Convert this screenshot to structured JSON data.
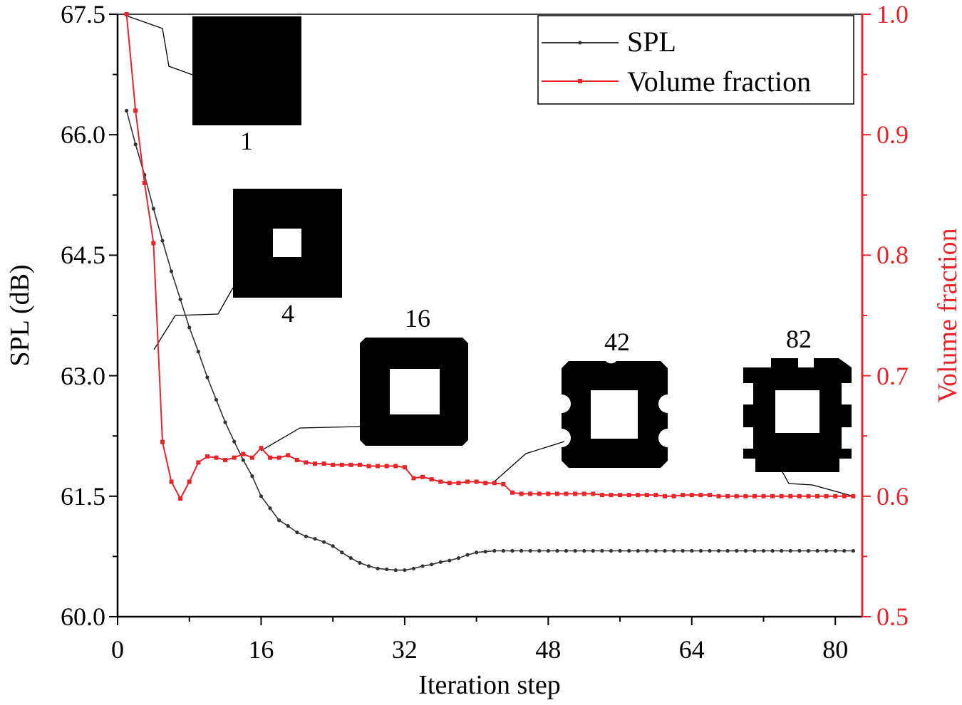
{
  "chart_data": {
    "type": "line",
    "title": "",
    "xlabel": "Iteration step",
    "ylabel": "SPL (dB)",
    "y2label": "Volume fraction",
    "xlim": [
      0,
      83
    ],
    "ylim": [
      60.0,
      67.5
    ],
    "y2lim": [
      0.5,
      1.0
    ],
    "x_ticks": [
      "0",
      "16",
      "32",
      "48",
      "64",
      "80"
    ],
    "y_ticks": [
      "60.0",
      "61.5",
      "63.0",
      "64.5",
      "66.0",
      "67.5"
    ],
    "y2_ticks": [
      "0.5",
      "0.6",
      "0.7",
      "0.8",
      "0.9",
      "1.0"
    ],
    "grid": false,
    "legend_position": "top-right",
    "colors": {
      "spl": "#333333",
      "volume": "#e8242a",
      "axis_left": "#000000",
      "axis_right": "#e8242a"
    },
    "series": [
      {
        "name": "SPL",
        "axis": "left",
        "x": [
          1,
          2,
          3,
          4,
          5,
          6,
          7,
          8,
          9,
          10,
          11,
          12,
          13,
          14,
          15,
          16,
          17,
          18,
          19,
          20,
          21,
          22,
          23,
          24,
          25,
          26,
          27,
          28,
          29,
          30,
          31,
          32,
          33,
          34,
          35,
          36,
          37,
          38,
          39,
          40,
          41,
          42,
          43,
          44,
          45,
          46,
          47,
          48,
          49,
          50,
          51,
          52,
          53,
          54,
          55,
          56,
          57,
          58,
          59,
          60,
          61,
          62,
          63,
          64,
          65,
          66,
          67,
          68,
          69,
          70,
          71,
          72,
          73,
          74,
          75,
          76,
          77,
          78,
          79,
          80,
          81,
          82
        ],
        "values": [
          66.3,
          65.88,
          65.5,
          65.08,
          64.68,
          64.3,
          63.95,
          63.6,
          63.3,
          62.98,
          62.7,
          62.42,
          62.18,
          61.95,
          61.75,
          61.5,
          61.35,
          61.2,
          61.13,
          61.05,
          61.0,
          60.97,
          60.93,
          60.88,
          60.8,
          60.73,
          60.67,
          60.63,
          60.6,
          60.59,
          60.58,
          60.58,
          60.6,
          60.63,
          60.65,
          60.68,
          60.7,
          60.73,
          60.77,
          60.8,
          60.81,
          60.82,
          60.82,
          60.82,
          60.82,
          60.82,
          60.82,
          60.82,
          60.82,
          60.82,
          60.82,
          60.82,
          60.82,
          60.82,
          60.82,
          60.82,
          60.82,
          60.82,
          60.82,
          60.82,
          60.82,
          60.82,
          60.82,
          60.82,
          60.82,
          60.82,
          60.82,
          60.82,
          60.82,
          60.82,
          60.82,
          60.82,
          60.82,
          60.82,
          60.82,
          60.82,
          60.82,
          60.82,
          60.82,
          60.82,
          60.82,
          60.82
        ]
      },
      {
        "name": "Volume fraction",
        "axis": "right",
        "x": [
          1,
          2,
          3,
          4,
          5,
          6,
          7,
          8,
          9,
          10,
          11,
          12,
          13,
          14,
          15,
          16,
          17,
          18,
          19,
          20,
          21,
          22,
          23,
          24,
          25,
          26,
          27,
          28,
          29,
          30,
          31,
          32,
          33,
          34,
          35,
          36,
          37,
          38,
          39,
          40,
          41,
          42,
          43,
          44,
          45,
          46,
          47,
          48,
          49,
          50,
          51,
          52,
          53,
          54,
          55,
          56,
          57,
          58,
          59,
          60,
          61,
          62,
          63,
          64,
          65,
          66,
          67,
          68,
          69,
          70,
          71,
          72,
          73,
          74,
          75,
          76,
          77,
          78,
          79,
          80,
          81,
          82
        ],
        "values": [
          1.0,
          0.92,
          0.86,
          0.81,
          0.645,
          0.612,
          0.598,
          0.612,
          0.628,
          0.633,
          0.632,
          0.63,
          0.632,
          0.635,
          0.632,
          0.64,
          0.632,
          0.632,
          0.634,
          0.63,
          0.628,
          0.627,
          0.627,
          0.626,
          0.626,
          0.626,
          0.626,
          0.625,
          0.625,
          0.625,
          0.625,
          0.624,
          0.615,
          0.616,
          0.614,
          0.612,
          0.611,
          0.611,
          0.612,
          0.612,
          0.611,
          0.611,
          0.61,
          0.603,
          0.602,
          0.602,
          0.602,
          0.602,
          0.602,
          0.602,
          0.602,
          0.602,
          0.602,
          0.601,
          0.601,
          0.601,
          0.601,
          0.601,
          0.601,
          0.601,
          0.6,
          0.6,
          0.601,
          0.601,
          0.601,
          0.601,
          0.6,
          0.6,
          0.6,
          0.6,
          0.6,
          0.6,
          0.6,
          0.6,
          0.6,
          0.6,
          0.6,
          0.6,
          0.6,
          0.6,
          0.6,
          0.6
        ]
      }
    ],
    "design_snapshots": [
      {
        "iteration": 1,
        "label": "1"
      },
      {
        "iteration": 4,
        "label": "4"
      },
      {
        "iteration": 16,
        "label": "16"
      },
      {
        "iteration": 42,
        "label": "42"
      },
      {
        "iteration": 82,
        "label": "82"
      }
    ]
  }
}
